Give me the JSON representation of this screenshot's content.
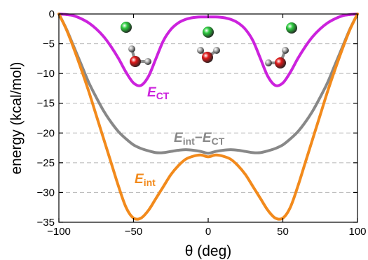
{
  "chart_data": {
    "type": "line",
    "xlabel": "θ (deg)",
    "ylabel": "energy (kcal/mol)",
    "xlim": [
      -100,
      100
    ],
    "ylim": [
      -35,
      0
    ],
    "x_ticks": [
      -100,
      -50,
      0,
      50,
      100
    ],
    "x_tick_labels": [
      "−100",
      "−50",
      "0",
      "50",
      "100"
    ],
    "y_ticks": [
      0,
      -5,
      -10,
      -15,
      -20,
      -25,
      -30,
      -35
    ],
    "y_tick_labels": [
      "0",
      "−5",
      "−10",
      "−15",
      "−20",
      "−25",
      "−30",
      "−35"
    ],
    "grid": "horizontal dashed",
    "series": [
      {
        "label_main": "E",
        "label_sub": "CT",
        "color": "#cc22dd",
        "x": [
          -100,
          -95,
          -90,
          -85,
          -80,
          -75,
          -70,
          -65,
          -60,
          -55,
          -50,
          -45,
          -40,
          -35,
          -30,
          -25,
          -20,
          -15,
          -10,
          -5,
          0,
          5,
          10,
          15,
          20,
          25,
          30,
          35,
          40,
          45,
          50,
          55,
          60,
          65,
          70,
          75,
          80,
          85,
          90,
          95,
          100
        ],
        "y": [
          0,
          -0.1,
          -0.3,
          -0.8,
          -1.5,
          -2.5,
          -3.8,
          -5.5,
          -7.5,
          -9.8,
          -11.6,
          -12.0,
          -10.5,
          -7.5,
          -4.5,
          -2.6,
          -1.5,
          -0.9,
          -0.6,
          -0.5,
          -0.5,
          -0.5,
          -0.6,
          -0.9,
          -1.5,
          -2.6,
          -4.5,
          -7.5,
          -10.5,
          -12.0,
          -11.6,
          -9.8,
          -7.5,
          -5.5,
          -3.8,
          -2.5,
          -1.5,
          -0.8,
          -0.3,
          -0.1,
          0
        ]
      },
      {
        "label_main": "E",
        "label_sub": "int",
        "label_sep": "−",
        "label_main2": "E",
        "label_sub2": "CT",
        "color": "#888888",
        "x": [
          -100,
          -95,
          -90,
          -85,
          -80,
          -75,
          -70,
          -65,
          -60,
          -55,
          -50,
          -45,
          -40,
          -35,
          -30,
          -25,
          -20,
          -15,
          -10,
          -5,
          0,
          5,
          10,
          15,
          20,
          25,
          30,
          35,
          40,
          45,
          50,
          55,
          60,
          65,
          70,
          75,
          80,
          85,
          90,
          95,
          100
        ],
        "y": [
          0,
          -2.5,
          -5.5,
          -8.5,
          -11.5,
          -14.0,
          -16.3,
          -18.2,
          -19.8,
          -21.0,
          -22.0,
          -22.6,
          -23.0,
          -23.3,
          -23.3,
          -23.1,
          -22.9,
          -22.8,
          -22.9,
          -23.1,
          -23.4,
          -23.1,
          -22.9,
          -22.8,
          -22.9,
          -23.1,
          -23.3,
          -23.3,
          -23.0,
          -22.6,
          -22.0,
          -21.0,
          -19.8,
          -18.2,
          -16.3,
          -14.0,
          -11.5,
          -8.5,
          -5.5,
          -2.5,
          0
        ]
      },
      {
        "label_main": "E",
        "label_sub": "int",
        "color": "#f28a1c",
        "x": [
          -100,
          -95,
          -90,
          -85,
          -80,
          -75,
          -70,
          -65,
          -60,
          -55,
          -50,
          -45,
          -40,
          -35,
          -30,
          -25,
          -20,
          -15,
          -10,
          -5,
          0,
          5,
          10,
          15,
          20,
          25,
          30,
          35,
          40,
          45,
          50,
          55,
          60,
          65,
          70,
          75,
          80,
          85,
          90,
          95,
          100
        ],
        "y": [
          0,
          -2.6,
          -5.8,
          -9.3,
          -13.0,
          -17.0,
          -21.0,
          -25.0,
          -29.0,
          -32.5,
          -34.3,
          -34.3,
          -33.0,
          -31.0,
          -29.0,
          -27.0,
          -25.5,
          -24.4,
          -23.9,
          -23.7,
          -24.0,
          -23.7,
          -23.9,
          -24.4,
          -25.5,
          -27.0,
          -29.0,
          -31.0,
          -33.0,
          -34.3,
          -34.3,
          -32.5,
          -29.0,
          -25.0,
          -21.0,
          -17.0,
          -13.0,
          -9.3,
          -5.8,
          -2.6,
          0
        ]
      }
    ],
    "molecule_colors": {
      "chlorine": "#2ecc40",
      "oxygen": "#e01a1a",
      "hydrogen": "#bbbbbb"
    }
  }
}
